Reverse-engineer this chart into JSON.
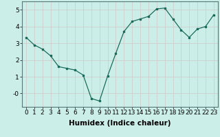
{
  "x": [
    0,
    1,
    2,
    3,
    4,
    5,
    6,
    7,
    8,
    9,
    10,
    11,
    12,
    13,
    14,
    15,
    16,
    17,
    18,
    19,
    20,
    21,
    22,
    23
  ],
  "y": [
    3.35,
    2.9,
    2.65,
    2.25,
    1.6,
    1.5,
    1.4,
    1.1,
    -0.3,
    -0.45,
    1.05,
    2.4,
    3.7,
    4.3,
    4.45,
    4.6,
    5.05,
    5.1,
    4.45,
    3.8,
    3.35,
    3.85,
    4.0,
    4.7
  ],
  "line_color": "#1a6b5a",
  "bg_color": "#cceee8",
  "grid_color": "#d0c8c8",
  "xlabel": "Humidex (Indice chaleur)",
  "ylim": [
    -0.8,
    5.5
  ],
  "xlim": [
    -0.5,
    23.5
  ],
  "xticks": [
    0,
    1,
    2,
    3,
    4,
    5,
    6,
    7,
    8,
    9,
    10,
    11,
    12,
    13,
    14,
    15,
    16,
    17,
    18,
    19,
    20,
    21,
    22,
    23
  ],
  "yticks": [
    0,
    1,
    2,
    3,
    4,
    5
  ],
  "ytick_labels": [
    "-0",
    "1",
    "2",
    "3",
    "4",
    "5"
  ],
  "xlabel_fontsize": 7.5,
  "tick_fontsize": 6.5
}
